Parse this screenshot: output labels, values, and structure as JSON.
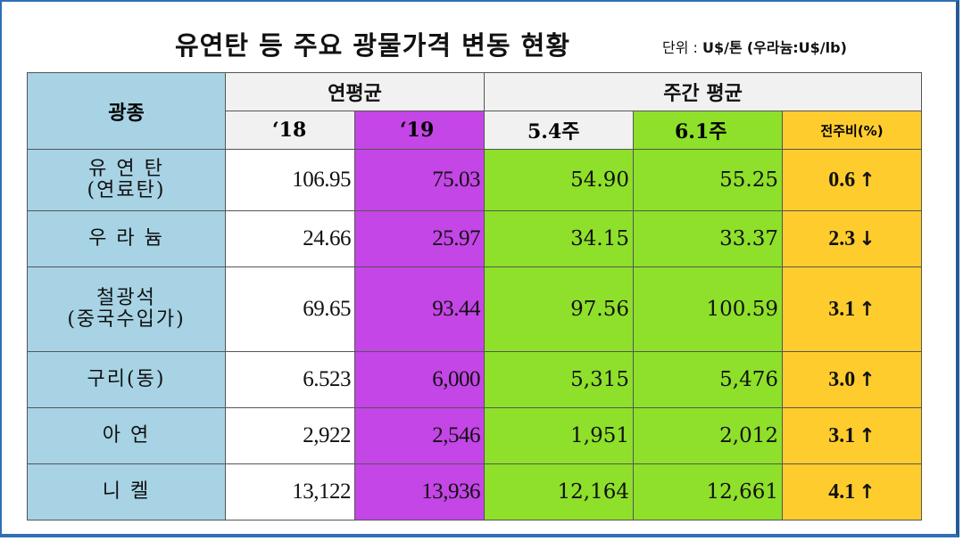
{
  "title": "유연탄 등 주요 광물가격 변동 현황",
  "unit_prefix": "단위 : ",
  "unit_value": "U$/톤",
  "unit_paren": "(우라늄:U$/lb)",
  "header": {
    "mineral": "광종",
    "annual_avg": "연평균",
    "weekly_avg": "주간 평균",
    "y18": "‘18",
    "y19": "‘19",
    "w5": "5.4주",
    "w6": "6.1주",
    "change": "전주비(%)"
  },
  "rows": [
    {
      "name1": "유 연 탄",
      "name2": "(연료탄)",
      "y18": "106.95",
      "y19": "75.03",
      "w5": "54.90",
      "w6": "55.25",
      "chg": "0.6",
      "dir": "↑"
    },
    {
      "name1": "우 라 늄",
      "name2": "",
      "y18": "24.66",
      "y19": "25.97",
      "w5": "34.15",
      "w6": "33.37",
      "chg": "2.3",
      "dir": "↓"
    },
    {
      "name1": "철광석",
      "name2": "(중국수입가)",
      "y18": "69.65",
      "y19": "93.44",
      "w5": "97.56",
      "w6": "100.59",
      "chg": "3.1",
      "dir": "↑"
    },
    {
      "name1": "구리(동)",
      "name2": "",
      "y18": "6.523",
      "y19": "6,000",
      "w5": "5,315",
      "w6": "5,476",
      "chg": "3.0",
      "dir": "↑"
    },
    {
      "name1": "아   연",
      "name2": "",
      "y18": "2,922",
      "y19": "2,546",
      "w5": "1,951",
      "w6": "2,012",
      "chg": "3.1",
      "dir": "↑"
    },
    {
      "name1": "니   켈",
      "name2": "",
      "y18": "13,122",
      "y19": "13,936",
      "w5": "12,164",
      "w6": "12,661",
      "chg": "4.1",
      "dir": "↑"
    }
  ]
}
